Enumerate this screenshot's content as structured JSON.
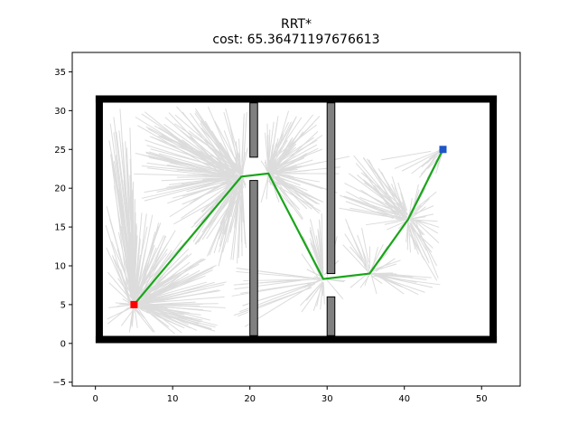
{
  "chart_data": {
    "type": "scatter",
    "title": "RRT*",
    "subtitle": "cost: 65.36471197676613",
    "xlabel": "",
    "ylabel": "",
    "xlim": [
      -3,
      55
    ],
    "ylim": [
      -5.5,
      37.5
    ],
    "xticks": [
      0,
      10,
      20,
      30,
      40,
      50
    ],
    "yticks": [
      -5,
      0,
      5,
      10,
      15,
      20,
      25,
      30,
      35
    ],
    "grid": false,
    "legend": "none",
    "colors": {
      "tree": "#dcdcdc",
      "path": "#1aa51a",
      "walls": "#000000",
      "obstacles_fill": "#808080",
      "start": "#ff0000",
      "goal": "#1e56c8"
    },
    "walls": [
      [
        [
          0.5,
          0.5
        ],
        [
          51.5,
          0.5
        ]
      ],
      [
        [
          51.5,
          0.5
        ],
        [
          51.5,
          31.5
        ]
      ],
      [
        [
          51.5,
          31.5
        ],
        [
          0.5,
          31.5
        ]
      ],
      [
        [
          0.5,
          31.5
        ],
        [
          0.5,
          0.5
        ]
      ]
    ],
    "obstacles": [
      {
        "x0": 20,
        "y0": 24,
        "x1": 21,
        "y1": 31
      },
      {
        "x0": 20,
        "y0": 1,
        "x1": 21,
        "y1": 21
      },
      {
        "x0": 30,
        "y0": 9,
        "x1": 31,
        "y1": 31
      },
      {
        "x0": 30,
        "y0": 1,
        "x1": 31,
        "y1": 6
      }
    ],
    "start": {
      "x": 5,
      "y": 5
    },
    "goal": {
      "x": 45,
      "y": 25
    },
    "path": [
      {
        "x": 5,
        "y": 5
      },
      {
        "x": 18.9,
        "y": 21.5
      },
      {
        "x": 22.4,
        "y": 21.9
      },
      {
        "x": 29.5,
        "y": 8.3
      },
      {
        "x": 35.5,
        "y": 9
      },
      {
        "x": 40.5,
        "y": 16
      },
      {
        "x": 45,
        "y": 25
      }
    ],
    "tree_regions": [
      {
        "rx0": 1.3,
        "rx1": 19.8,
        "ry0": 1.2,
        "ry1": 30.8,
        "n": 420
      },
      {
        "rx0": 21.3,
        "rx1": 29.6,
        "ry0": 17,
        "ry1": 30,
        "n": 90
      },
      {
        "rx0": 26.5,
        "rx1": 29.8,
        "ry0": 4,
        "ry1": 18,
        "n": 45
      },
      {
        "rx0": 31.2,
        "rx1": 44.8,
        "ry0": 5.5,
        "ry1": 24.5,
        "n": 150
      }
    ]
  }
}
